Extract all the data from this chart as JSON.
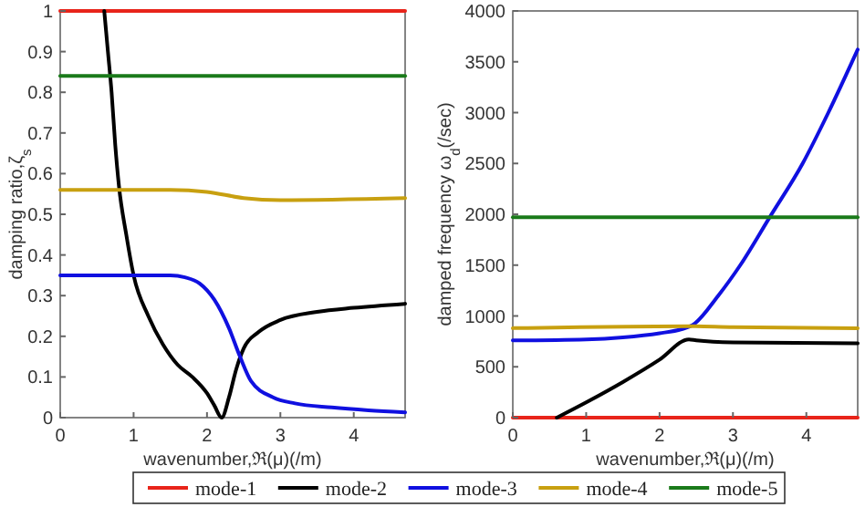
{
  "chart_data": [
    {
      "type": "line",
      "xlabel": "wavenumber,ℜ(μ)(/m)",
      "ylabel": "damping ratio,ζ$_{s}$",
      "xlim": [
        0,
        4.7
      ],
      "ylim": [
        0,
        1
      ],
      "xticks": [
        0,
        1,
        2,
        3,
        4
      ],
      "yticks": [
        0,
        0.1,
        0.2,
        0.3,
        0.4,
        0.5,
        0.6,
        0.7,
        0.8,
        0.9,
        1
      ],
      "grid": false,
      "legend": "bottom",
      "series": [
        {
          "name": "mode-1",
          "color": "#e8241a",
          "x": [
            0,
            4.7
          ],
          "values": [
            1,
            1
          ]
        },
        {
          "name": "mode-2",
          "color": "#000000",
          "x": [
            0.6,
            0.65,
            0.7,
            0.75,
            0.8,
            0.9,
            1.0,
            1.2,
            1.4,
            1.6,
            1.8,
            2.0,
            2.1,
            2.2,
            2.3,
            2.4,
            2.5,
            2.7,
            3.0,
            3.5,
            4.0,
            4.7
          ],
          "values": [
            1.0,
            0.9,
            0.8,
            0.67,
            0.57,
            0.45,
            0.35,
            0.25,
            0.18,
            0.13,
            0.1,
            0.06,
            0.03,
            0.0,
            0.05,
            0.12,
            0.17,
            0.21,
            0.24,
            0.26,
            0.27,
            0.28
          ]
        },
        {
          "name": "mode-3",
          "color": "#1010e0",
          "x": [
            0,
            1.5,
            1.7,
            1.9,
            2.1,
            2.3,
            2.45,
            2.6,
            2.9,
            3.2,
            3.7,
            4.2,
            4.7
          ],
          "values": [
            0.35,
            0.35,
            0.345,
            0.33,
            0.29,
            0.22,
            0.15,
            0.09,
            0.05,
            0.035,
            0.025,
            0.018,
            0.013
          ]
        },
        {
          "name": "mode-4",
          "color": "#c8a010",
          "x": [
            0,
            1.5,
            2,
            2.5,
            3,
            4.7
          ],
          "values": [
            0.56,
            0.56,
            0.555,
            0.54,
            0.535,
            0.54
          ]
        },
        {
          "name": "mode-5",
          "color": "#1a7a1a",
          "x": [
            0,
            4.7
          ],
          "values": [
            0.84,
            0.84
          ]
        }
      ]
    },
    {
      "type": "line",
      "xlabel": "wavenumber,ℜ(μ)(/m)",
      "ylabel": "damped frequency ω$_{d}$(/sec)",
      "xlim": [
        0,
        4.7
      ],
      "ylim": [
        0,
        4000
      ],
      "xticks": [
        0,
        1,
        2,
        3,
        4
      ],
      "yticks": [
        0,
        500,
        1000,
        1500,
        2000,
        2500,
        3000,
        3500,
        4000
      ],
      "grid": false,
      "series": [
        {
          "color": "#e8241a",
          "x": [
            0,
            4.7
          ],
          "values": [
            0,
            0
          ]
        },
        {
          "color": "#000000",
          "x": [
            0.6,
            1.0,
            1.5,
            2.0,
            2.4,
            2.5,
            3.0,
            4.7
          ],
          "values": [
            0,
            150,
            350,
            570,
            770,
            760,
            740,
            730
          ]
        },
        {
          "color": "#1010e0",
          "x": [
            0,
            1,
            1.5,
            2,
            2.3,
            2.45,
            2.8,
            3.1,
            3.5,
            3.95,
            4.3,
            4.7
          ],
          "values": [
            760,
            770,
            790,
            830,
            870,
            910,
            1200,
            1500,
            1970,
            2500,
            3000,
            3620
          ]
        },
        {
          "color": "#c8a010",
          "x": [
            0,
            2.4,
            3,
            4.7
          ],
          "values": [
            880,
            900,
            890,
            880
          ]
        },
        {
          "color": "#1a7a1a",
          "x": [
            0,
            4.7
          ],
          "values": [
            1970,
            1970
          ]
        }
      ]
    }
  ]
}
